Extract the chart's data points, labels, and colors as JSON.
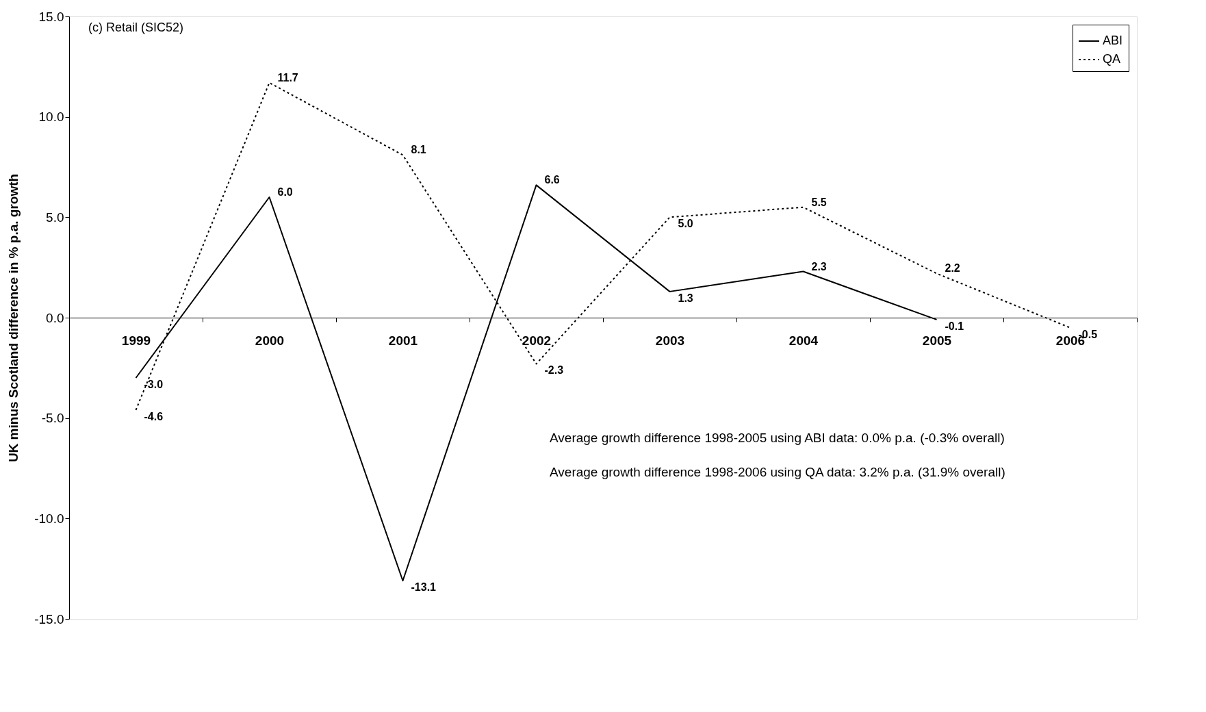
{
  "chart_data": {
    "type": "line",
    "title": "(c) Retail (SIC52)",
    "ylabel": "UK minus Scotland difference in % p.a. growth",
    "categories": [
      "1999",
      "2000",
      "2001",
      "2002",
      "2003",
      "2004",
      "2005",
      "2006"
    ],
    "series": [
      {
        "name": "ABI",
        "color": "#000000",
        "line_style": "solid",
        "values": [
          -3.0,
          6.0,
          -13.1,
          6.6,
          1.3,
          2.3,
          -0.1,
          null
        ],
        "value_labels": [
          "-3.0",
          "6.0",
          "-13.1",
          "6.6",
          "1.3",
          "2.3",
          "-0.1",
          null
        ]
      },
      {
        "name": "QA",
        "color": "#000000",
        "line_style": "dotted",
        "values": [
          -4.6,
          11.7,
          8.1,
          -2.3,
          5.0,
          5.5,
          2.2,
          -0.5
        ],
        "value_labels": [
          "-4.6",
          "11.7",
          "8.1",
          "-2.3",
          "5.0",
          "5.5",
          "2.2",
          "-0.5"
        ]
      }
    ],
    "ylim": [
      -15,
      15
    ],
    "yticks": [
      {
        "value": -15,
        "label": "-15.0"
      },
      {
        "value": -10,
        "label": "-10.0"
      },
      {
        "value": -5,
        "label": "-5.0"
      },
      {
        "value": 0,
        "label": "0.0"
      },
      {
        "value": 5,
        "label": "5.0"
      },
      {
        "value": 10,
        "label": "10.0"
      },
      {
        "value": 15,
        "label": "15.0"
      }
    ],
    "grid": false,
    "legend": "top right",
    "marker": "none",
    "annotations": [
      "Average growth difference 1998-2005 using ABI data: 0.0% p.a. (-0.3% overall)",
      "Average growth difference 1998-2006 using QA data: 3.2% p.a. (31.9% overall)"
    ]
  }
}
